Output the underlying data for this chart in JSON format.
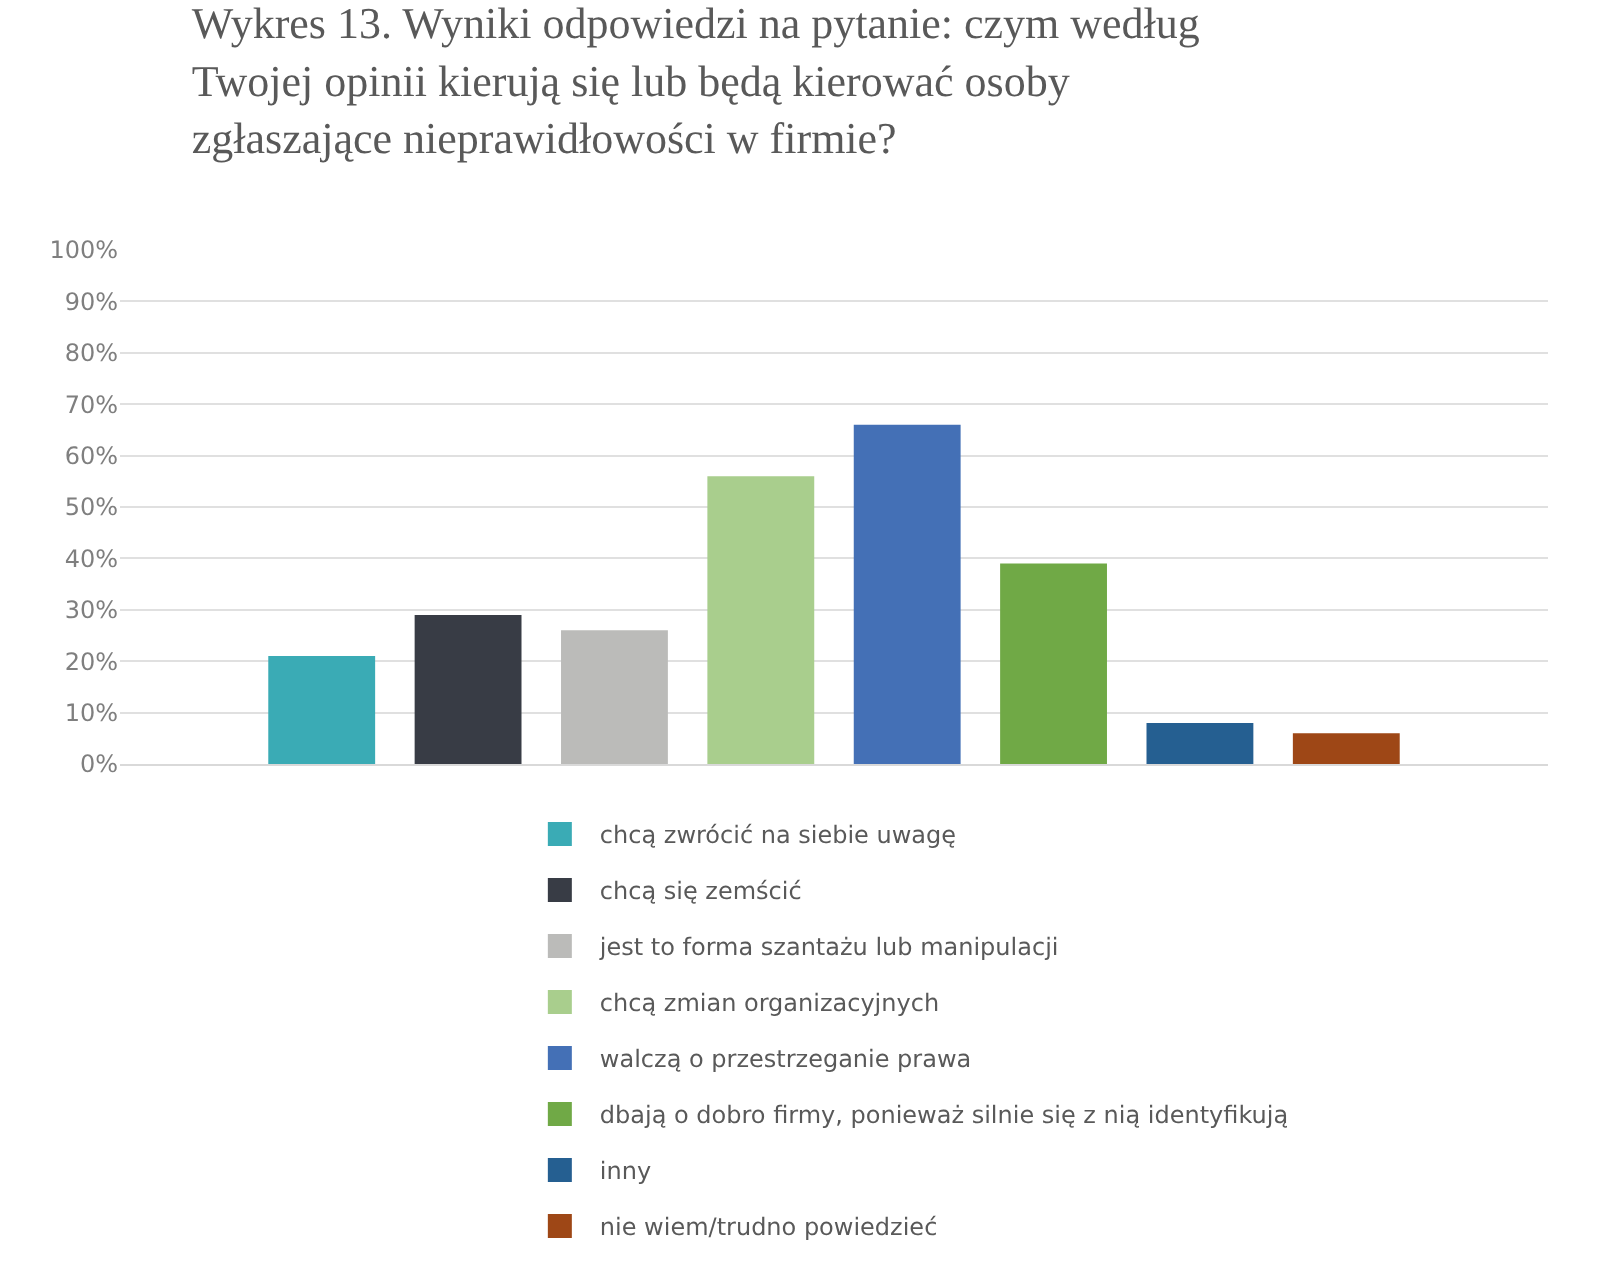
{
  "chart_data": {
    "type": "bar",
    "title": "Wykres 13. Wyniki odpowiedzi na pytanie: czym według Twojej opinii kierują się lub będą kierować osoby zgłaszające nieprawidłowości w firmie?",
    "categories": [
      null
    ],
    "series": [
      {
        "name": "chcą zwrócić na siebie uwagę",
        "color": "#3aabb5",
        "values": [
          21
        ]
      },
      {
        "name": "chcą się zemścić",
        "color": "#383c45",
        "values": [
          29
        ]
      },
      {
        "name": "jest to forma szantażu lub manipulacji",
        "color": "#bbbbb9",
        "values": [
          26
        ]
      },
      {
        "name": "chcą zmian organizacyjnych",
        "color": "#a9ce8d",
        "values": [
          56
        ]
      },
      {
        "name": "walczą o przestrzeganie prawa",
        "color": "#4470b6",
        "values": [
          66
        ]
      },
      {
        "name": "dbają o dobro firmy, ponieważ silnie się z nią identyfikują",
        "color": "#70a946",
        "values": [
          39
        ]
      },
      {
        "name": "inny",
        "color": "#255f91",
        "values": [
          8
        ]
      },
      {
        "name": "nie wiem/trudno powiedzieć",
        "color": "#9e4716",
        "values": [
          6
        ]
      }
    ],
    "ylim": [
      0,
      100
    ],
    "yticks": [
      {
        "value": 0,
        "label": "0%"
      },
      {
        "value": 10,
        "label": "10%"
      },
      {
        "value": 20,
        "label": "20%"
      },
      {
        "value": 30,
        "label": "30%"
      },
      {
        "value": 40,
        "label": "40%"
      },
      {
        "value": 50,
        "label": "50%"
      },
      {
        "value": 60,
        "label": "60%"
      },
      {
        "value": 70,
        "label": "70%"
      },
      {
        "value": 80,
        "label": "80%"
      },
      {
        "value": 90,
        "label": "90%"
      },
      {
        "value": 100,
        "label": "100%"
      }
    ],
    "grid": "y",
    "legend": "bottom"
  }
}
